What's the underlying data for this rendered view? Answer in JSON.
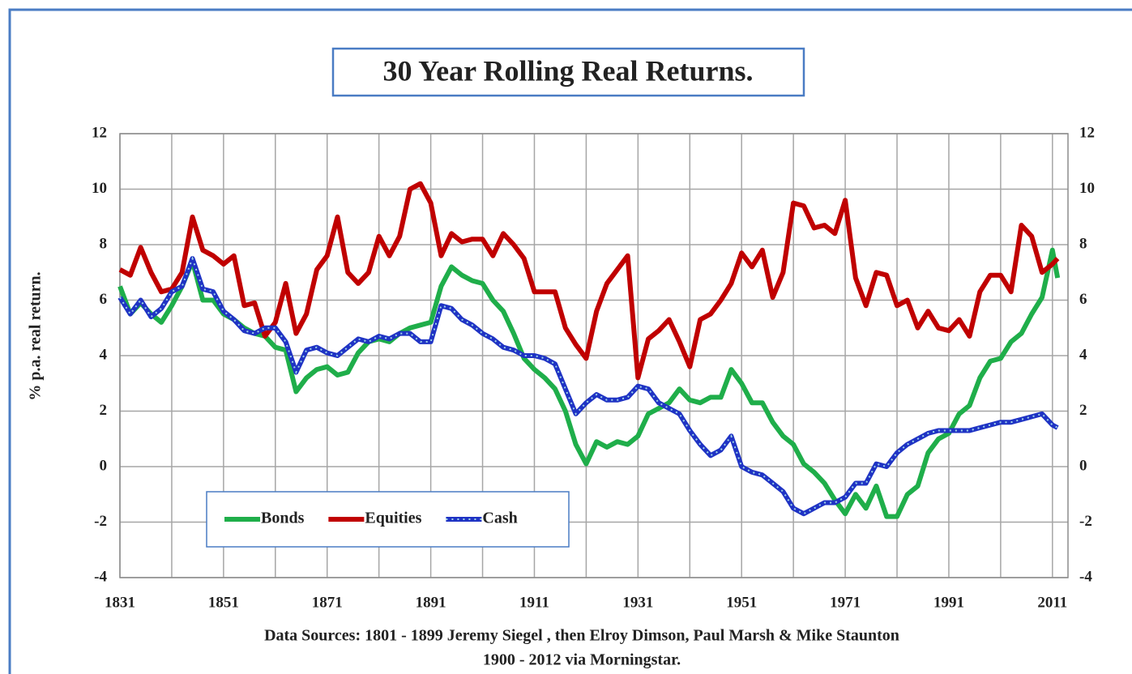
{
  "chart_data": {
    "type": "line",
    "title": "30 Year Rolling Real Returns.",
    "ylabel": "% p.a. real return.",
    "source_notes": [
      "Data Sources: 1801 - 1899 Jeremy Siegel , then Elroy Dimson, Paul Marsh & Mike Staunton",
      "1900  -  2012  via Morningstar."
    ],
    "x": [
      1831,
      1833,
      1835,
      1837,
      1839,
      1841,
      1843,
      1845,
      1847,
      1849,
      1851,
      1853,
      1855,
      1857,
      1859,
      1861,
      1863,
      1865,
      1867,
      1869,
      1871,
      1873,
      1875,
      1877,
      1879,
      1881,
      1883,
      1885,
      1887,
      1889,
      1891,
      1893,
      1895,
      1897,
      1899,
      1901,
      1903,
      1905,
      1907,
      1909,
      1911,
      1913,
      1915,
      1917,
      1919,
      1921,
      1923,
      1925,
      1927,
      1929,
      1931,
      1933,
      1935,
      1937,
      1939,
      1941,
      1943,
      1945,
      1947,
      1949,
      1951,
      1953,
      1955,
      1957,
      1959,
      1961,
      1963,
      1965,
      1967,
      1969,
      1971,
      1973,
      1975,
      1977,
      1979,
      1981,
      1983,
      1985,
      1987,
      1989,
      1991,
      1993,
      1995,
      1997,
      1999,
      2001,
      2003,
      2005,
      2007,
      2009,
      2011,
      2012
    ],
    "series": [
      {
        "name": "Bonds",
        "color": "#1fae4a",
        "values": [
          6.5,
          5.5,
          5.9,
          5.5,
          5.2,
          5.8,
          6.5,
          7.4,
          6.0,
          6.0,
          5.5,
          5.3,
          5.0,
          4.8,
          4.7,
          4.3,
          4.2,
          2.7,
          3.2,
          3.5,
          3.6,
          3.3,
          3.4,
          4.1,
          4.5,
          4.6,
          4.5,
          4.8,
          5.0,
          5.1,
          5.2,
          6.5,
          7.2,
          6.9,
          6.7,
          6.6,
          6.0,
          5.6,
          4.8,
          3.9,
          3.5,
          3.2,
          2.8,
          2.0,
          0.8,
          0.1,
          0.9,
          0.7,
          0.9,
          0.8,
          1.1,
          1.9,
          2.1,
          2.3,
          2.8,
          2.4,
          2.3,
          2.5,
          2.5,
          3.5,
          3.0,
          2.3,
          2.3,
          1.6,
          1.1,
          0.8,
          0.1,
          -0.2,
          -0.6,
          -1.2,
          -1.7,
          -1.0,
          -1.5,
          -0.7,
          -1.8,
          -1.8,
          -1.0,
          -0.7,
          0.5,
          1.0,
          1.2,
          1.9,
          2.2,
          3.2,
          3.8,
          3.9,
          4.5,
          4.8,
          5.5,
          6.1,
          7.8,
          6.8
        ]
      },
      {
        "name": "Equities",
        "color": "#c00000",
        "values": [
          7.1,
          6.9,
          7.9,
          7.0,
          6.3,
          6.4,
          7.0,
          9.0,
          7.8,
          7.6,
          7.3,
          7.6,
          5.8,
          5.9,
          4.7,
          5.2,
          6.6,
          4.8,
          5.5,
          7.1,
          7.6,
          9.0,
          7.0,
          6.6,
          7.0,
          8.3,
          7.6,
          8.3,
          10.0,
          10.2,
          9.5,
          7.6,
          8.4,
          8.1,
          8.2,
          8.2,
          7.6,
          8.4,
          8.0,
          7.5,
          6.3,
          6.3,
          6.3,
          5.0,
          4.4,
          3.9,
          5.6,
          6.6,
          7.1,
          7.6,
          3.2,
          4.6,
          4.9,
          5.3,
          4.5,
          3.6,
          5.3,
          5.5,
          6.0,
          6.6,
          7.7,
          7.2,
          7.8,
          6.1,
          7.0,
          9.5,
          9.4,
          8.6,
          8.7,
          8.4,
          9.6,
          6.8,
          5.8,
          7.0,
          6.9,
          5.8,
          6.0,
          5.0,
          5.6,
          5.0,
          4.9,
          5.3,
          4.7,
          6.3,
          6.9,
          6.9,
          6.3,
          8.7,
          8.3,
          7.0,
          7.3,
          7.5
        ]
      },
      {
        "name": "Cash",
        "color": "#1f33c4",
        "values": [
          6.1,
          5.5,
          6.0,
          5.4,
          5.7,
          6.3,
          6.5,
          7.5,
          6.4,
          6.3,
          5.6,
          5.3,
          4.9,
          4.8,
          5.0,
          5.0,
          4.5,
          3.4,
          4.2,
          4.3,
          4.1,
          4.0,
          4.3,
          4.6,
          4.5,
          4.7,
          4.6,
          4.8,
          4.8,
          4.5,
          4.5,
          5.8,
          5.7,
          5.3,
          5.1,
          4.8,
          4.6,
          4.3,
          4.2,
          4.0,
          4.0,
          3.9,
          3.7,
          2.8,
          1.9,
          2.3,
          2.6,
          2.4,
          2.4,
          2.5,
          2.9,
          2.8,
          2.3,
          2.1,
          1.9,
          1.3,
          0.8,
          0.4,
          0.6,
          1.1,
          0.0,
          -0.2,
          -0.3,
          -0.6,
          -0.9,
          -1.5,
          -1.7,
          -1.5,
          -1.3,
          -1.3,
          -1.1,
          -0.6,
          -0.6,
          0.1,
          0.0,
          0.5,
          0.8,
          1.0,
          1.2,
          1.3,
          1.3,
          1.3,
          1.3,
          1.4,
          1.5,
          1.6,
          1.6,
          1.7,
          1.8,
          1.9,
          1.5,
          1.4
        ]
      }
    ],
    "xlim": [
      1831,
      2014
    ],
    "xticks": [
      1831,
      1851,
      1871,
      1891,
      1911,
      1931,
      1951,
      1971,
      1991,
      2011
    ],
    "xgrid_lines": [
      1841,
      1861,
      1881,
      1901,
      1921,
      1941,
      1961,
      1981,
      2001
    ],
    "ylim": [
      -4,
      12
    ],
    "yticks": [
      -4,
      -2,
      0,
      2,
      4,
      6,
      8,
      10,
      12
    ],
    "y2lim": [
      -4,
      12
    ],
    "y2ticks": [
      -4,
      -2,
      0,
      2,
      4,
      6,
      8,
      10,
      12
    ],
    "grid": true,
    "legend": "lower-left"
  }
}
